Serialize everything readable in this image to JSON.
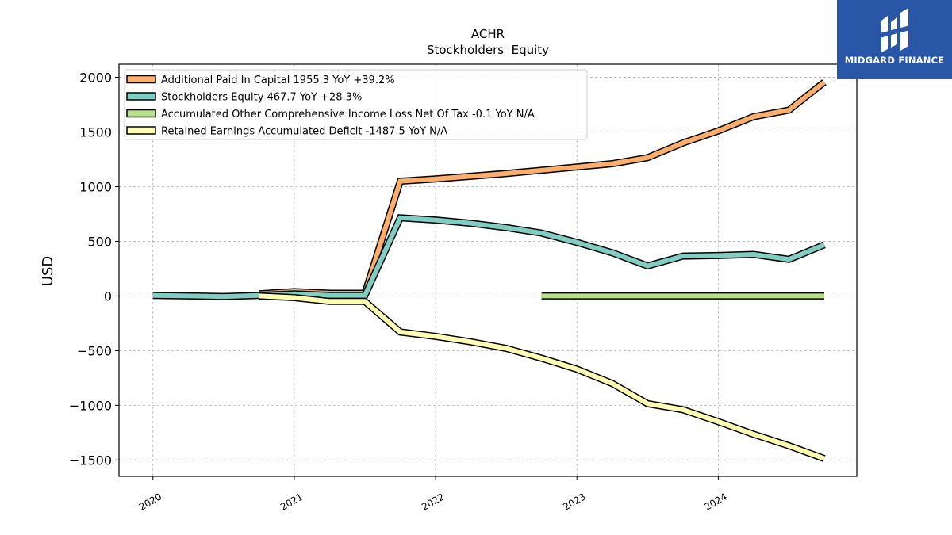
{
  "chart_data": {
    "type": "line",
    "title": "ACHR",
    "subtitle": "Stockholders  Equity",
    "ylabel": "USD",
    "xlabel": "",
    "ylim": [
      -1650,
      2120
    ],
    "xlim": [
      2019.76,
      2024.98
    ],
    "yticks": [
      2000,
      1500,
      1000,
      500,
      0,
      -500,
      -1000,
      -1500
    ],
    "ytick_labels": [
      "2000",
      "1500",
      "1000",
      "500",
      "0",
      "−500",
      "−1000",
      "−1500"
    ],
    "xticks": [
      2020,
      2021,
      2022,
      2023,
      2024
    ],
    "xtick_labels": [
      "2020",
      "2021",
      "2022",
      "2023",
      "2024"
    ],
    "grid": true,
    "legend_position": "top-left",
    "series": [
      {
        "name": "Additional Paid In Capital",
        "legend": "Additional Paid In Capital  1955.3 YoY +39.2%",
        "color": "#fdae6b",
        "points": [
          [
            2020.75,
            20
          ],
          [
            2021.0,
            40
          ],
          [
            2021.25,
            25
          ],
          [
            2021.5,
            25
          ],
          [
            2021.75,
            1050
          ],
          [
            2022.0,
            1070
          ],
          [
            2022.25,
            1095
          ],
          [
            2022.5,
            1120
          ],
          [
            2022.75,
            1150
          ],
          [
            2023.0,
            1180
          ],
          [
            2023.25,
            1210
          ],
          [
            2023.5,
            1265
          ],
          [
            2023.75,
            1400
          ],
          [
            2024.0,
            1510
          ],
          [
            2024.25,
            1640
          ],
          [
            2024.5,
            1700
          ],
          [
            2024.75,
            1955.3
          ]
        ]
      },
      {
        "name": "Stockholders Equity",
        "legend": "Stockholders Equity  467.7 YoY +28.3%",
        "color": "#80cdc1",
        "points": [
          [
            2020.0,
            5
          ],
          [
            2020.5,
            -5
          ],
          [
            2020.75,
            5
          ],
          [
            2021.0,
            20
          ],
          [
            2021.25,
            5
          ],
          [
            2021.5,
            5
          ],
          [
            2021.75,
            715
          ],
          [
            2022.0,
            695
          ],
          [
            2022.25,
            665
          ],
          [
            2022.5,
            625
          ],
          [
            2022.75,
            575
          ],
          [
            2023.0,
            490
          ],
          [
            2023.25,
            395
          ],
          [
            2023.5,
            275
          ],
          [
            2023.75,
            365
          ],
          [
            2024.0,
            370
          ],
          [
            2024.25,
            380
          ],
          [
            2024.5,
            335
          ],
          [
            2024.75,
            467.7
          ]
        ]
      },
      {
        "name": "Accumulated Other Comprehensive Income Loss Net Of Tax",
        "legend": "Accumulated Other Comprehensive Income Loss Net Of Tax  -0.1 YoY N/A",
        "color": "#b8e186",
        "points": [
          [
            2022.75,
            0
          ],
          [
            2023.0,
            0
          ],
          [
            2023.25,
            0
          ],
          [
            2023.5,
            0
          ],
          [
            2023.75,
            0
          ],
          [
            2024.0,
            0
          ],
          [
            2024.25,
            0
          ],
          [
            2024.5,
            0
          ],
          [
            2024.75,
            -0.1
          ]
        ]
      },
      {
        "name": "Retained Earnings Accumulated Deficit",
        "legend": "Retained Earnings Accumulated Deficit  -1487.5 YoY N/A",
        "color": "#ffffb3",
        "points": [
          [
            2020.75,
            0
          ],
          [
            2021.0,
            -15
          ],
          [
            2021.25,
            -50
          ],
          [
            2021.5,
            -50
          ],
          [
            2021.75,
            -330
          ],
          [
            2022.0,
            -370
          ],
          [
            2022.25,
            -420
          ],
          [
            2022.5,
            -480
          ],
          [
            2022.75,
            -570
          ],
          [
            2023.0,
            -670
          ],
          [
            2023.25,
            -800
          ],
          [
            2023.5,
            -985
          ],
          [
            2023.75,
            -1040
          ],
          [
            2024.0,
            -1150
          ],
          [
            2024.25,
            -1265
          ],
          [
            2024.5,
            -1370
          ],
          [
            2024.75,
            -1487.5
          ]
        ]
      }
    ]
  },
  "watermark": {
    "text": "MIDGARD FINANCE",
    "background": "#2a56a8"
  }
}
